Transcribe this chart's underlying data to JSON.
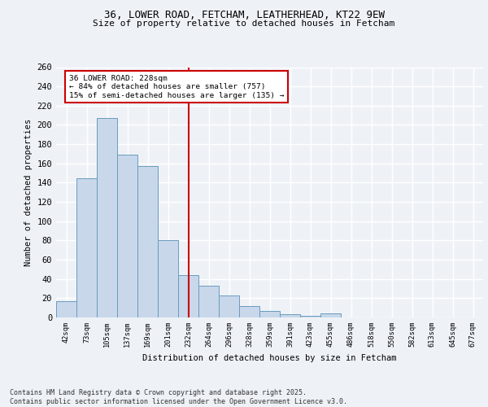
{
  "title1": "36, LOWER ROAD, FETCHAM, LEATHERHEAD, KT22 9EW",
  "title2": "Size of property relative to detached houses in Fetcham",
  "xlabel": "Distribution of detached houses by size in Fetcham",
  "ylabel": "Number of detached properties",
  "categories": [
    "42sqm",
    "73sqm",
    "105sqm",
    "137sqm",
    "169sqm",
    "201sqm",
    "232sqm",
    "264sqm",
    "296sqm",
    "328sqm",
    "359sqm",
    "391sqm",
    "423sqm",
    "455sqm",
    "486sqm",
    "518sqm",
    "550sqm",
    "582sqm",
    "613sqm",
    "645sqm",
    "677sqm"
  ],
  "values": [
    17,
    145,
    207,
    169,
    157,
    80,
    44,
    33,
    23,
    12,
    7,
    3,
    2,
    4,
    0,
    0,
    0,
    0,
    0,
    0,
    0
  ],
  "bar_color": "#c8d8ea",
  "bar_edge_color": "#6a9bbf",
  "vline_x": 6,
  "vline_color": "#cc0000",
  "annotation_text": "36 LOWER ROAD: 228sqm\n← 84% of detached houses are smaller (757)\n15% of semi-detached houses are larger (135) →",
  "annotation_box_color": "#ffffff",
  "annotation_box_edge": "#cc0000",
  "footnote": "Contains HM Land Registry data © Crown copyright and database right 2025.\nContains public sector information licensed under the Open Government Licence v3.0.",
  "bg_color": "#eef2f7",
  "plot_bg_color": "#eef2f7",
  "grid_color": "#ffffff",
  "ylim": [
    0,
    260
  ],
  "yticks": [
    0,
    20,
    40,
    60,
    80,
    100,
    120,
    140,
    160,
    180,
    200,
    220,
    240,
    260
  ]
}
